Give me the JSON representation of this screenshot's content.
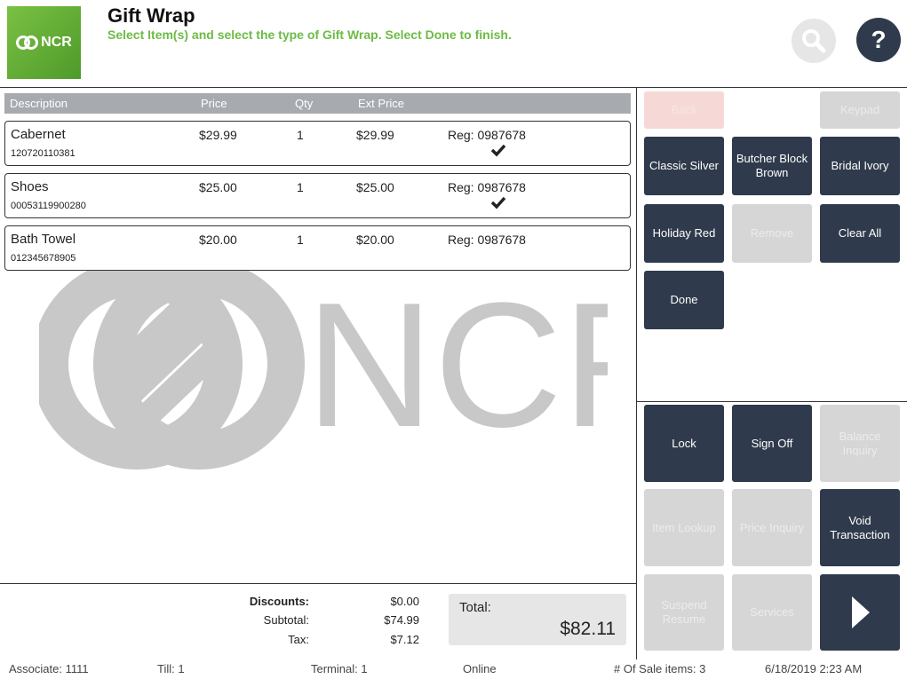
{
  "header": {
    "logo_text": "NCR",
    "title": "Gift Wrap",
    "subtitle": "Select Item(s) and select the type of Gift Wrap. Select Done to finish.",
    "search_icon": "search-icon",
    "help_label": "?"
  },
  "table": {
    "columns": [
      "Description",
      "Price",
      "Qty",
      "Ext Price"
    ],
    "items": [
      {
        "description": "Cabernet",
        "sku": "120720110381",
        "price": "$29.99",
        "qty": "1",
        "ext_price": "$29.99",
        "reg": "Reg: 0987678",
        "checked": true
      },
      {
        "description": "Shoes",
        "sku": "00053119900280",
        "price": "$25.00",
        "qty": "1",
        "ext_price": "$25.00",
        "reg": "Reg: 0987678",
        "checked": true
      },
      {
        "description": "Bath Towel",
        "sku": "012345678905",
        "price": "$20.00",
        "qty": "1",
        "ext_price": "$20.00",
        "reg": "Reg: 0987678",
        "checked": false
      }
    ]
  },
  "watermark_text": "NCR",
  "buttons": {
    "back": "Back",
    "keypad": "Keypad",
    "classic_silver": "Classic Silver",
    "butcher_block_brown": "Butcher Block Brown",
    "bridal_ivory": "Bridal Ivory",
    "holiday_red": "Holiday Red",
    "remove": "Remove",
    "clear_all": "Clear All",
    "done": "Done",
    "lock": "Lock",
    "sign_off": "Sign Off",
    "balance_inquiry": "Balance Inquiry",
    "item_lookup": "Item Lookup",
    "price_inquiry": "Price Inquiry",
    "void_transaction": "Void Transaction",
    "suspend_resume": "Suspend Resume",
    "services": "Services"
  },
  "totals": {
    "discounts_label": "Discounts:",
    "discounts": "$0.00",
    "subtotal_label": "Subtotal:",
    "subtotal": "$74.99",
    "tax_label": "Tax:",
    "tax": "$7.12",
    "total_label": "Total:",
    "total": "$82.11"
  },
  "footer": {
    "associate": "Associate: 1111",
    "till": "Till: 1",
    "terminal": "Terminal: 1",
    "status": "Online",
    "sale_items": "# Of Sale items: 3",
    "datetime": "6/18/2019 2:23 AM"
  },
  "colors": {
    "dark_button": "#2f3b4c",
    "disabled_button": "#d6d6d6",
    "accent_green": "#6dbb45",
    "table_header": "#a7abb0"
  }
}
